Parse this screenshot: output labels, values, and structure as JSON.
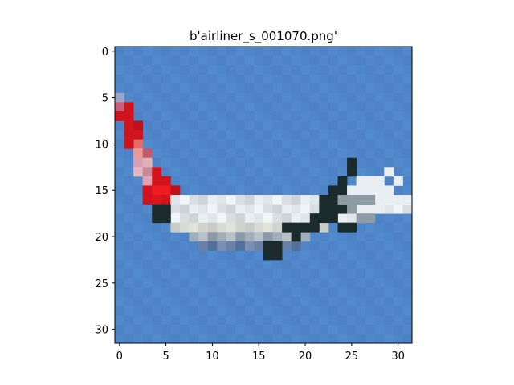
{
  "figure": {
    "title": "b'airliner_s_001070.png'"
  },
  "image": {
    "description_colors": {
      "sky": "#4f86c9",
      "tail_red": "#d0141c",
      "fuselage_white": "#e9eef2",
      "engine_dark": "#1b2a2a"
    },
    "pixel_grid": 32
  },
  "axes": {
    "x_ticks": [
      "0",
      "5",
      "10",
      "15",
      "20",
      "25",
      "30"
    ],
    "y_ticks": [
      "0",
      "5",
      "10",
      "15",
      "20",
      "25",
      "30"
    ],
    "x_tick_values": [
      0,
      5,
      10,
      15,
      20,
      25,
      30
    ],
    "y_tick_values": [
      0,
      5,
      10,
      15,
      20,
      25,
      30
    ],
    "xlim": [
      -0.5,
      31.5
    ],
    "ylim": [
      31.5,
      -0.5
    ]
  }
}
